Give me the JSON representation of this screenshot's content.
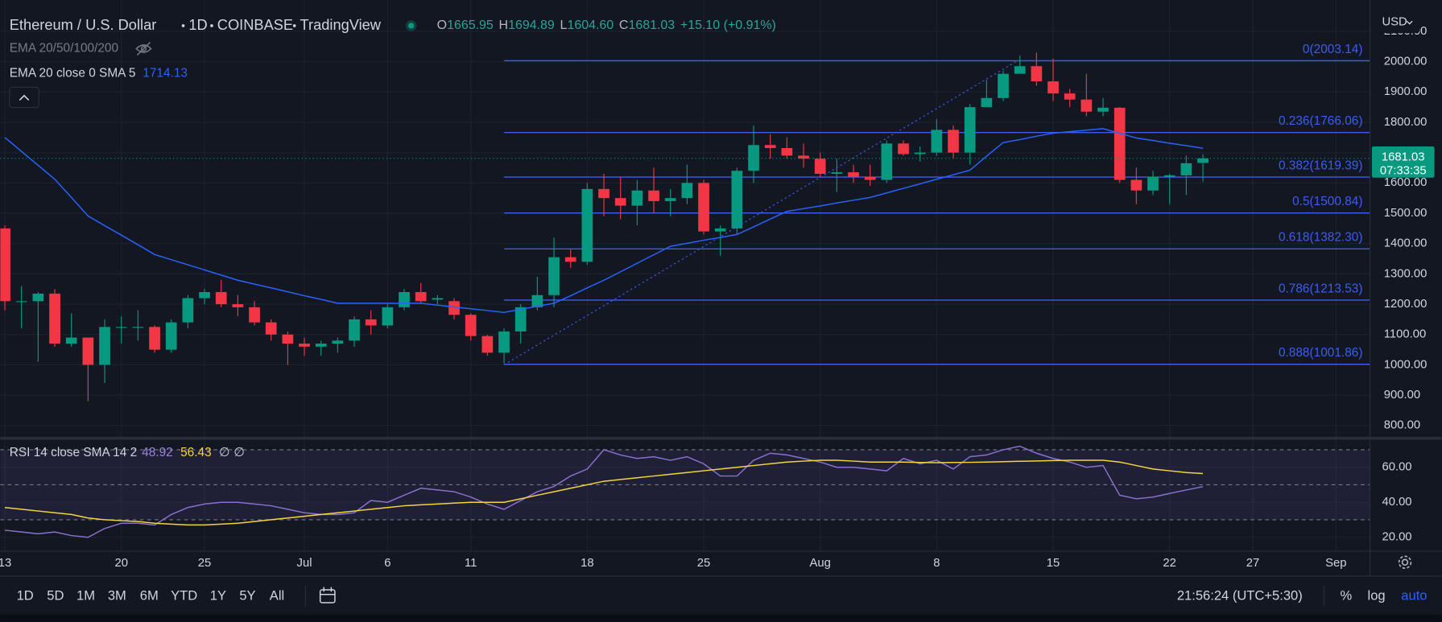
{
  "currency": "USD",
  "chart_data": {
    "type": "candlestick",
    "title": "Ethereum / U.S. Dollar",
    "interval": "1D",
    "exchange": "COINBASE",
    "brand": "TradingView",
    "legend": [
      {
        "key": "O",
        "value": "1665.95"
      },
      {
        "key": "H",
        "value": "1694.89"
      },
      {
        "key": "L",
        "value": "1604.60"
      },
      {
        "key": "C",
        "value": "1681.03"
      }
    ],
    "change": "+15.10 (+0.91%)",
    "indicator_group": "EMA 20/50/100/200",
    "categories": [
      "13",
      null,
      null,
      null,
      null,
      null,
      null,
      "20",
      null,
      null,
      null,
      null,
      "25",
      null,
      null,
      null,
      null,
      null,
      "Jul",
      null,
      null,
      null,
      null,
      "6",
      null,
      null,
      null,
      null,
      "11",
      null,
      null,
      null,
      null,
      null,
      null,
      "18",
      null,
      null,
      null,
      null,
      null,
      null,
      "25",
      null,
      null,
      null,
      null,
      null,
      null,
      "Aug",
      null,
      null,
      null,
      null,
      null,
      null,
      "8",
      null,
      null,
      null,
      null,
      null,
      null,
      "15",
      null,
      null,
      null,
      null,
      null,
      null,
      "22",
      null,
      null,
      null,
      null,
      "27",
      null,
      null,
      null,
      null,
      "Sep"
    ],
    "open": [
      1450,
      1210,
      1210,
      1235,
      1070,
      1090,
      1000,
      1125,
      1125,
      1125,
      1050,
      1140,
      1220,
      1240,
      1200,
      1190,
      1140,
      1100,
      1070,
      1060,
      1070,
      1080,
      1150,
      1130,
      1190,
      1240,
      1215,
      1210,
      1165,
      1095,
      1040,
      1110,
      1190,
      1230,
      1355,
      1340,
      1580,
      1550,
      1525,
      1575,
      1540,
      1550,
      1600,
      1440,
      1450,
      1640,
      1725,
      1715,
      1690,
      1680,
      1630,
      1635,
      1620,
      1610,
      1730,
      1695,
      1700,
      1775,
      1700,
      1850,
      1880,
      1960,
      1985,
      1935,
      1895,
      1875,
      1835,
      1848,
      1610,
      1575,
      1620,
      1625,
      1665.95,
      null,
      null,
      null,
      null,
      null,
      null,
      null,
      null
    ],
    "high": [
      1460,
      1260,
      1240,
      1250,
      1170,
      1090,
      1150,
      1160,
      1180,
      1130,
      1150,
      1230,
      1250,
      1280,
      1230,
      1210,
      1150,
      1110,
      1090,
      1080,
      1090,
      1160,
      1180,
      1200,
      1250,
      1270,
      1230,
      1220,
      1170,
      1100,
      1120,
      1200,
      1290,
      1420,
      1380,
      1600,
      1630,
      1620,
      1610,
      1650,
      1580,
      1660,
      1610,
      1460,
      1650,
      1790,
      1760,
      1750,
      1730,
      1700,
      1680,
      1660,
      1660,
      1740,
      1740,
      1720,
      1810,
      1790,
      1860,
      1940,
      1970,
      2020,
      2030,
      2010,
      1910,
      1960,
      1880,
      1850,
      1650,
      1640,
      1630,
      1690,
      1694.89,
      null,
      null,
      null,
      null,
      null,
      null,
      null,
      null
    ],
    "low": [
      1180,
      1120,
      1010,
      1060,
      1060,
      880,
      940,
      1070,
      1080,
      1040,
      1040,
      1120,
      1200,
      1190,
      1160,
      1130,
      1080,
      1000,
      1030,
      1030,
      1040,
      1060,
      1100,
      1120,
      1180,
      1200,
      1200,
      1150,
      1080,
      1030,
      1005,
      1070,
      1180,
      1190,
      1320,
      1330,
      1490,
      1480,
      1460,
      1500,
      1490,
      1530,
      1430,
      1360,
      1430,
      1600,
      1680,
      1680,
      1650,
      1620,
      1570,
      1600,
      1590,
      1600,
      1690,
      1670,
      1690,
      1680,
      1660,
      1850,
      1870,
      1960,
      1920,
      1870,
      1850,
      1820,
      1820,
      1600,
      1530,
      1560,
      1530,
      1560,
      1604.6,
      null,
      null,
      null,
      null,
      null,
      null,
      null,
      null
    ],
    "close": [
      1210,
      1210,
      1235,
      1070,
      1090,
      1000,
      1125,
      1125,
      1125,
      1050,
      1140,
      1220,
      1240,
      1200,
      1190,
      1140,
      1100,
      1070,
      1060,
      1070,
      1080,
      1150,
      1130,
      1190,
      1240,
      1210,
      1220,
      1165,
      1095,
      1040,
      1110,
      1190,
      1230,
      1355,
      1340,
      1580,
      1550,
      1525,
      1575,
      1540,
      1550,
      1600,
      1440,
      1450,
      1640,
      1725,
      1715,
      1690,
      1680,
      1630,
      1635,
      1620,
      1610,
      1730,
      1695,
      1700,
      1775,
      1700,
      1850,
      1880,
      1960,
      1985,
      1935,
      1895,
      1875,
      1835,
      1848,
      1610,
      1575,
      1620,
      1625,
      1665,
      1681.03,
      null,
      null,
      null,
      null,
      null,
      null,
      null,
      null
    ],
    "up_color": "#089981",
    "down_color": "#f23645",
    "ylim": [
      764,
      2179
    ],
    "yticks": [
      {
        "value": 800,
        "label": "800.00"
      },
      {
        "value": 900,
        "label": "900.00"
      },
      {
        "value": 1000,
        "label": "1000.00"
      },
      {
        "value": 1100,
        "label": "1100.00"
      },
      {
        "value": 1200,
        "label": "1200.00"
      },
      {
        "value": 1300,
        "label": "1300.00"
      },
      {
        "value": 1400,
        "label": "1400.00"
      },
      {
        "value": 1500,
        "label": "1500.00"
      },
      {
        "value": 1600,
        "label": "1600.00"
      },
      {
        "value": 1700,
        "label": "1700.00"
      },
      {
        "value": 1800,
        "label": "1800.00"
      },
      {
        "value": 1900,
        "label": "1900.00"
      },
      {
        "value": 2000,
        "label": "2000.00"
      },
      {
        "value": 2100,
        "label": "2100.00"
      }
    ],
    "grid": true,
    "last_price": {
      "label": "1681.03",
      "countdown": "07:33:35"
    },
    "ema": {
      "label": "EMA 20 close 0 SMA 5",
      "value_label": "1714.13",
      "color": "#2962ff",
      "values": [
        1750,
        1704,
        1658,
        1612,
        1552,
        1491,
        1459,
        1428,
        1396,
        1364,
        1347,
        1330,
        1313,
        1296,
        1279,
        1266,
        1254,
        1241,
        1228,
        1216,
        1203,
        1203,
        1203,
        1203,
        1203,
        1203,
        1197,
        1191,
        1185,
        1179,
        1173,
        1183,
        1193,
        1203,
        1228,
        1254,
        1279,
        1307,
        1335,
        1363,
        1391,
        1401,
        1411,
        1420,
        1430,
        1455,
        1481,
        1506,
        1515,
        1524,
        1534,
        1543,
        1552,
        1567,
        1582,
        1597,
        1612,
        1627,
        1642,
        1688,
        1733,
        1743,
        1754,
        1764,
        1769,
        1774,
        1779,
        1764,
        1748,
        1740,
        1731,
        1723,
        1714.13,
        null,
        null,
        null,
        null,
        null,
        null,
        null,
        null
      ]
    },
    "fib": {
      "color": "#3d5cf2",
      "levels": [
        {
          "value": 2003.14,
          "label": "0(2003.14)"
        },
        {
          "value": 1766.06,
          "label": "0.236(1766.06)"
        },
        {
          "value": 1619.39,
          "label": "0.382(1619.39)"
        },
        {
          "value": 1500.84,
          "label": "0.5(1500.84)"
        },
        {
          "value": 1382.3,
          "label": "0.618(1382.30)"
        },
        {
          "value": 1213.53,
          "label": "0.786(1213.53)"
        },
        {
          "value": 1001.86,
          "label": "0.888(1001.86)"
        }
      ]
    },
    "rsi": {
      "label": "RSI 14 close SMA 14 2",
      "value_label": "48.92",
      "sma_label": "56.43",
      "extras": [
        "∅",
        "∅"
      ],
      "color": "#8a6fd1",
      "sma_color": "#f5d53a",
      "ylim": [
        12,
        75
      ],
      "yticks": [
        {
          "value": 20,
          "label": "20.00"
        },
        {
          "value": 40,
          "label": "40.00"
        },
        {
          "value": 60,
          "label": "60.00"
        }
      ],
      "bands": [
        30,
        50,
        70
      ],
      "values": [
        24,
        23,
        22,
        23,
        21,
        20,
        25,
        28,
        28,
        27,
        33,
        37,
        39,
        40,
        40,
        39,
        38,
        36,
        34,
        33,
        33,
        34,
        41,
        40,
        44,
        48,
        47,
        46,
        43,
        39,
        36,
        41,
        46,
        49,
        55,
        59,
        70,
        67,
        65,
        66,
        64,
        66,
        62,
        55,
        55,
        64,
        68,
        67,
        65,
        63,
        60,
        60,
        59,
        58,
        65,
        62,
        64,
        59,
        66,
        67,
        70,
        72,
        68,
        65,
        63,
        60,
        61,
        44,
        42,
        43,
        45,
        47,
        48.92,
        null,
        null,
        null,
        null,
        null,
        null,
        null,
        null
      ],
      "sma_values": [
        37,
        36,
        35,
        34,
        33,
        31,
        30,
        29.5,
        29,
        28,
        27.5,
        27,
        27,
        27.5,
        28,
        29,
        30,
        31,
        32,
        33,
        34,
        35,
        36,
        37,
        38,
        38.5,
        39,
        39.5,
        40,
        40,
        40,
        42,
        44,
        46,
        48,
        50,
        52,
        53,
        54,
        55,
        56,
        57,
        58,
        59,
        60,
        61,
        62,
        63,
        63.5,
        64,
        64,
        63.5,
        63,
        63,
        63,
        62.7,
        62.6,
        62.7,
        62.8,
        63,
        63.2,
        63.4,
        63.6,
        63.8,
        64,
        64,
        64,
        63,
        61,
        59,
        58,
        57,
        56.43,
        null,
        null,
        null,
        null,
        null,
        null,
        null,
        null
      ]
    }
  },
  "toolbar": {
    "ranges": [
      "1D",
      "5D",
      "1M",
      "3M",
      "6M",
      "YTD",
      "1Y",
      "5Y",
      "All"
    ],
    "time": "21:56:24 (UTC+5:30)",
    "options": [
      "%",
      "log",
      "auto"
    ]
  }
}
